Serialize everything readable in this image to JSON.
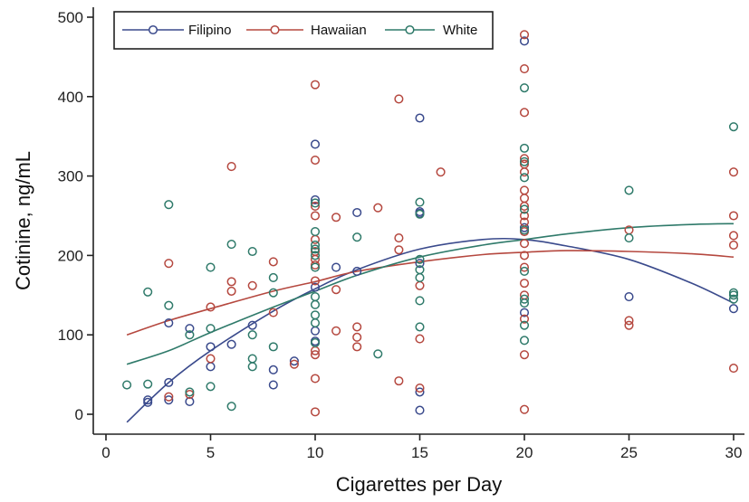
{
  "chart_data": {
    "type": "scatter",
    "title": "",
    "xlabel": "Cigarettes per Day",
    "ylabel": "Cotinine, ng/mL",
    "xlim": [
      0,
      30
    ],
    "ylim": [
      0,
      500
    ],
    "xticks": [
      "0",
      "5",
      "10",
      "15",
      "20",
      "25",
      "30"
    ],
    "yticks": [
      "0",
      "100",
      "200",
      "300",
      "400",
      "500"
    ],
    "grid": false,
    "legend_position": "top-left",
    "series": [
      {
        "name": "Filipino",
        "color": "#3a4a8c",
        "points": [
          [
            2,
            18
          ],
          [
            2,
            15
          ],
          [
            3,
            40
          ],
          [
            3,
            115
          ],
          [
            3,
            18
          ],
          [
            4,
            108
          ],
          [
            4,
            16
          ],
          [
            5,
            85
          ],
          [
            5,
            60
          ],
          [
            6,
            88
          ],
          [
            7,
            112
          ],
          [
            8,
            56
          ],
          [
            8,
            37
          ],
          [
            9,
            67
          ],
          [
            10,
            340
          ],
          [
            10,
            270
          ],
          [
            10,
            160
          ],
          [
            10,
            105
          ],
          [
            10,
            92
          ],
          [
            11,
            185
          ],
          [
            12,
            254
          ],
          [
            12,
            180
          ],
          [
            15,
            373
          ],
          [
            15,
            255
          ],
          [
            15,
            253
          ],
          [
            15,
            190
          ],
          [
            15,
            28
          ],
          [
            15,
            5
          ],
          [
            20,
            470
          ],
          [
            20,
            235
          ],
          [
            20,
            128
          ],
          [
            25,
            148
          ],
          [
            30,
            133
          ]
        ],
        "fit": [
          [
            1,
            -10
          ],
          [
            3,
            40
          ],
          [
            5,
            80
          ],
          [
            8,
            130
          ],
          [
            10,
            158
          ],
          [
            12,
            182
          ],
          [
            15,
            208
          ],
          [
            18,
            220
          ],
          [
            20,
            220
          ],
          [
            22,
            212
          ],
          [
            25,
            195
          ],
          [
            28,
            165
          ],
          [
            30,
            140
          ]
        ]
      },
      {
        "name": "Hawaiian",
        "color": "#b5483f",
        "points": [
          [
            3,
            190
          ],
          [
            3,
            22
          ],
          [
            4,
            25
          ],
          [
            5,
            135
          ],
          [
            5,
            70
          ],
          [
            6,
            312
          ],
          [
            6,
            167
          ],
          [
            6,
            155
          ],
          [
            7,
            162
          ],
          [
            8,
            192
          ],
          [
            8,
            128
          ],
          [
            9,
            63
          ],
          [
            10,
            415
          ],
          [
            10,
            320
          ],
          [
            10,
            262
          ],
          [
            10,
            250
          ],
          [
            10,
            220
          ],
          [
            10,
            205
          ],
          [
            10,
            195
          ],
          [
            10,
            188
          ],
          [
            10,
            168
          ],
          [
            10,
            80
          ],
          [
            10,
            75
          ],
          [
            10,
            45
          ],
          [
            10,
            3
          ],
          [
            11,
            248
          ],
          [
            11,
            157
          ],
          [
            11,
            105
          ],
          [
            12,
            110
          ],
          [
            12,
            97
          ],
          [
            12,
            85
          ],
          [
            13,
            260
          ],
          [
            14,
            397
          ],
          [
            14,
            222
          ],
          [
            14,
            207
          ],
          [
            14,
            42
          ],
          [
            15,
            162
          ],
          [
            15,
            95
          ],
          [
            15,
            33
          ],
          [
            16,
            305
          ],
          [
            20,
            478
          ],
          [
            20,
            435
          ],
          [
            20,
            380
          ],
          [
            20,
            322
          ],
          [
            20,
            315
          ],
          [
            20,
            305
          ],
          [
            20,
            282
          ],
          [
            20,
            272
          ],
          [
            20,
            262
          ],
          [
            20,
            250
          ],
          [
            20,
            242
          ],
          [
            20,
            230
          ],
          [
            20,
            215
          ],
          [
            20,
            200
          ],
          [
            20,
            185
          ],
          [
            20,
            165
          ],
          [
            20,
            150
          ],
          [
            20,
            120
          ],
          [
            20,
            75
          ],
          [
            20,
            6
          ],
          [
            25,
            232
          ],
          [
            25,
            118
          ],
          [
            25,
            112
          ],
          [
            30,
            305
          ],
          [
            30,
            250
          ],
          [
            30,
            225
          ],
          [
            30,
            213
          ],
          [
            30,
            58
          ]
        ],
        "fit": [
          [
            1,
            100
          ],
          [
            3,
            118
          ],
          [
            5,
            133
          ],
          [
            8,
            155
          ],
          [
            10,
            167
          ],
          [
            12,
            180
          ],
          [
            15,
            192
          ],
          [
            18,
            201
          ],
          [
            20,
            204
          ],
          [
            22,
            206
          ],
          [
            25,
            205
          ],
          [
            28,
            202
          ],
          [
            30,
            198
          ]
        ]
      },
      {
        "name": "White",
        "color": "#2f7a6a",
        "points": [
          [
            1,
            37
          ],
          [
            2,
            154
          ],
          [
            2,
            38
          ],
          [
            3,
            264
          ],
          [
            3,
            137
          ],
          [
            4,
            100
          ],
          [
            4,
            28
          ],
          [
            5,
            185
          ],
          [
            5,
            108
          ],
          [
            5,
            35
          ],
          [
            6,
            214
          ],
          [
            6,
            10
          ],
          [
            7,
            205
          ],
          [
            7,
            100
          ],
          [
            7,
            70
          ],
          [
            7,
            60
          ],
          [
            8,
            172
          ],
          [
            8,
            153
          ],
          [
            8,
            85
          ],
          [
            10,
            266
          ],
          [
            10,
            230
          ],
          [
            10,
            213
          ],
          [
            10,
            208
          ],
          [
            10,
            200
          ],
          [
            10,
            185
          ],
          [
            10,
            148
          ],
          [
            10,
            138
          ],
          [
            10,
            125
          ],
          [
            10,
            115
          ],
          [
            10,
            90
          ],
          [
            12,
            223
          ],
          [
            13,
            76
          ],
          [
            15,
            267
          ],
          [
            15,
            252
          ],
          [
            15,
            195
          ],
          [
            15,
            182
          ],
          [
            15,
            172
          ],
          [
            15,
            143
          ],
          [
            15,
            110
          ],
          [
            20,
            411
          ],
          [
            20,
            335
          ],
          [
            20,
            318
          ],
          [
            20,
            298
          ],
          [
            20,
            258
          ],
          [
            20,
            232
          ],
          [
            20,
            180
          ],
          [
            20,
            145
          ],
          [
            20,
            140
          ],
          [
            20,
            112
          ],
          [
            20,
            93
          ],
          [
            25,
            282
          ],
          [
            25,
            222
          ],
          [
            30,
            362
          ],
          [
            30,
            153
          ],
          [
            30,
            150
          ],
          [
            30,
            145
          ]
        ],
        "fit": [
          [
            1,
            63
          ],
          [
            3,
            80
          ],
          [
            5,
            103
          ],
          [
            8,
            135
          ],
          [
            10,
            155
          ],
          [
            12,
            175
          ],
          [
            15,
            198
          ],
          [
            18,
            213
          ],
          [
            20,
            220
          ],
          [
            22,
            227
          ],
          [
            25,
            235
          ],
          [
            28,
            239
          ],
          [
            30,
            240
          ]
        ]
      }
    ]
  }
}
